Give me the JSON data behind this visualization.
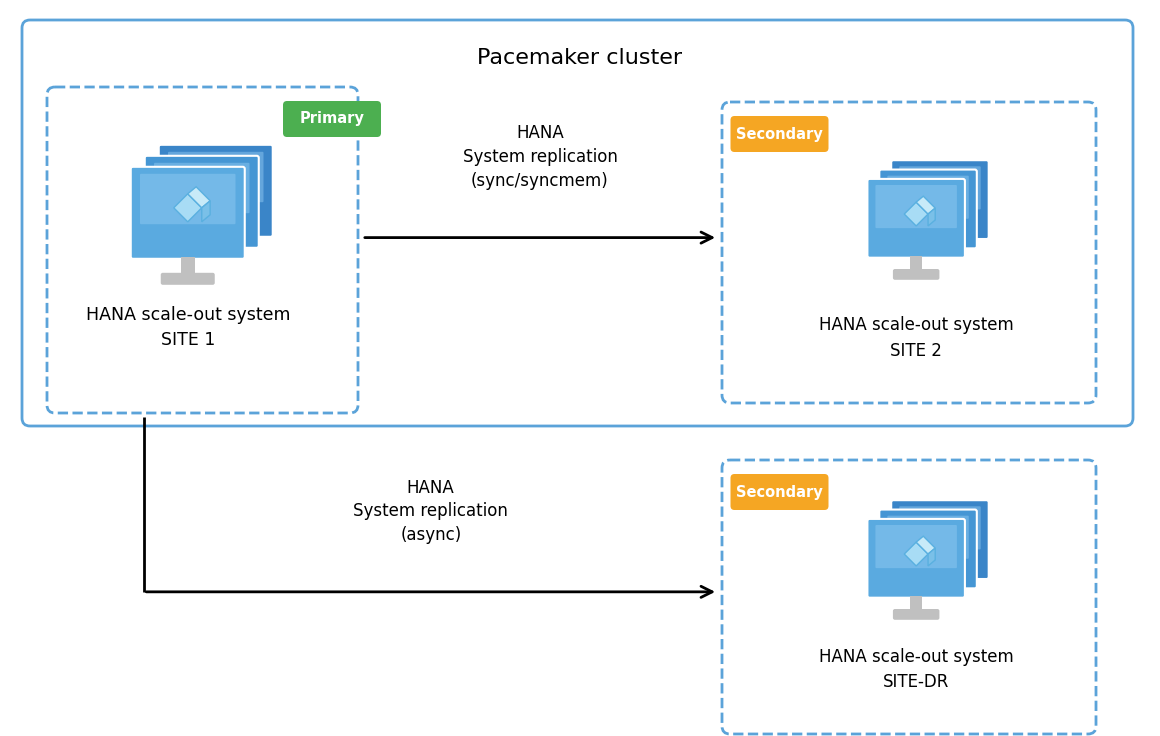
{
  "title": "Pacemaker cluster",
  "bg_color": "#ffffff",
  "text_color": "#000000",
  "arrow_color": "#000000",
  "primary_color": "#4caf50",
  "secondary_color": "#f5a623",
  "box_edge_color": "#5ba3d9",
  "outer_box_color": "#5ba3d9",
  "primary_label": "Primary",
  "secondary_label": "Secondary",
  "site1_label": "HANA scale-out system\nSITE 1",
  "site2_label": "HANA scale-out system\nSITE 2",
  "sitedr_label": "HANA scale-out system\nSITE-DR",
  "arrow1_label": "HANA\nSystem replication\n(sync/syncmem)",
  "arrow2_label": "HANA\nSystem replication\n(async)"
}
